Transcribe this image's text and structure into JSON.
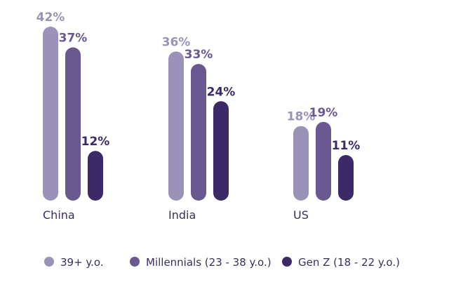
{
  "chart_data": {
    "type": "bar",
    "categories": [
      "China",
      "India",
      "US"
    ],
    "series": [
      {
        "name": "39+ y.o.",
        "values": [
          42,
          36,
          18
        ],
        "color": "#9b92b8"
      },
      {
        "name": "Millennials (23 - 38 y.o.)",
        "values": [
          37,
          33,
          19
        ],
        "color": "#6a5891"
      },
      {
        "name": "Gen Z (18 - 22 y.o.)",
        "values": [
          12,
          24,
          11
        ],
        "color": "#3b2a67"
      }
    ],
    "value_suffix": "%",
    "label_colors": [
      "#9b92b8",
      "#6a5891",
      "#3b2a67"
    ],
    "legend_position": "bottom",
    "grid": false,
    "title": "",
    "xlabel": "",
    "ylabel": ""
  }
}
